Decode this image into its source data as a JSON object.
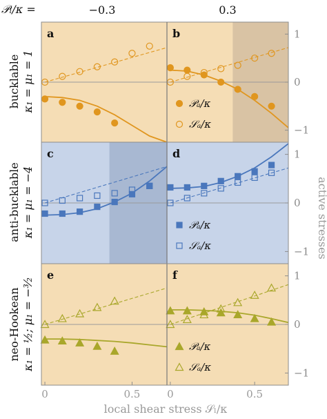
{
  "header": {
    "param_label": "𝒫ₗ/κ =",
    "col_left": "−0.3",
    "col_right": "0.3"
  },
  "rows": [
    {
      "label_top": "bucklable",
      "label_bottom": "κ₁ = μ₁ = 1"
    },
    {
      "label_top": "anti-bucklable",
      "label_bottom": "κ₁ = μ₁ = −4"
    },
    {
      "label_top": "neo-Hookean",
      "label_bottom": "κ₁ = ½; μ₁ = −³⁄₂"
    }
  ],
  "right_axis_label": "active stresses",
  "x_axis_label": "local shear stress 𝒮ₗ/κ",
  "x_ticks": [
    "0",
    "0.5",
    "0",
    "0.5"
  ],
  "y_ticks": [
    "1",
    "0",
    "−1",
    "1",
    "0",
    "−1",
    "1",
    "0",
    "−1"
  ],
  "colors": {
    "orange_bg": "#f5ddb5",
    "orange_shade": "#d9c3a4",
    "orange_mark": "#e0961f",
    "blue_bg": "#c7d4e9",
    "blue_shade": "#a8b8d2",
    "blue_mark": "#4a77bc",
    "olive_bg": "#f5ddb5",
    "olive_mark": "#a9a72b"
  },
  "chart_data": [
    {
      "panel": "a",
      "type": "scatter",
      "xlim": [
        -0.02,
        0.7
      ],
      "ylim": [
        -1.25,
        1.25
      ],
      "series": [
        {
          "marker": "filled-circle",
          "x": [
            0.0,
            0.1,
            0.2,
            0.3,
            0.4
          ],
          "y": [
            -0.35,
            -0.42,
            -0.5,
            -0.62,
            -0.85
          ]
        },
        {
          "marker": "open-circle",
          "x": [
            0.0,
            0.1,
            0.2,
            0.3,
            0.4,
            0.5,
            0.6
          ],
          "y": [
            0.0,
            0.12,
            0.22,
            0.32,
            0.42,
            0.6,
            0.75
          ]
        }
      ],
      "curves": [
        {
          "style": "solid",
          "x": [
            0.0,
            0.1,
            0.2,
            0.3,
            0.4,
            0.5,
            0.6,
            0.7
          ],
          "y": [
            -0.3,
            -0.32,
            -0.38,
            -0.5,
            -0.68,
            -0.9,
            -1.12,
            -1.3
          ]
        },
        {
          "style": "dashed",
          "x": [
            0.0,
            0.7
          ],
          "y": [
            0.0,
            0.72
          ]
        }
      ],
      "shade": null
    },
    {
      "panel": "b",
      "type": "scatter",
      "xlim": [
        -0.02,
        0.7
      ],
      "ylim": [
        -1.25,
        1.25
      ],
      "legend": [
        "𝒫ₐ/κ",
        "𝒮ₐ/κ"
      ],
      "series": [
        {
          "marker": "filled-circle",
          "x": [
            0.0,
            0.1,
            0.2,
            0.3,
            0.4,
            0.5,
            0.6
          ],
          "y": [
            0.3,
            0.25,
            0.15,
            0.0,
            -0.15,
            -0.3,
            -0.5
          ]
        },
        {
          "marker": "open-circle",
          "x": [
            0.0,
            0.1,
            0.2,
            0.3,
            0.4,
            0.5,
            0.6
          ],
          "y": [
            0.0,
            0.12,
            0.2,
            0.28,
            0.35,
            0.5,
            0.6
          ]
        }
      ],
      "curves": [
        {
          "style": "solid",
          "x": [
            0.0,
            0.1,
            0.2,
            0.3,
            0.4,
            0.5,
            0.6,
            0.7
          ],
          "y": [
            0.25,
            0.23,
            0.15,
            0.02,
            -0.15,
            -0.38,
            -0.65,
            -0.95
          ]
        },
        {
          "style": "dashed",
          "x": [
            0.0,
            0.7
          ],
          "y": [
            0.0,
            0.72
          ]
        }
      ],
      "shade": [
        0.37,
        0.7
      ]
    },
    {
      "panel": "c",
      "type": "scatter",
      "xlim": [
        -0.02,
        0.7
      ],
      "ylim": [
        -1.25,
        1.25
      ],
      "series": [
        {
          "marker": "filled-square",
          "x": [
            0.0,
            0.1,
            0.2,
            0.3,
            0.4,
            0.5,
            0.6
          ],
          "y": [
            -0.22,
            -0.22,
            -0.18,
            -0.08,
            0.02,
            0.18,
            0.35
          ]
        },
        {
          "marker": "open-square",
          "x": [
            0.0,
            0.1,
            0.2,
            0.3,
            0.4,
            0.5,
            0.6
          ],
          "y": [
            0.0,
            0.05,
            0.1,
            0.15,
            0.2,
            0.27,
            0.35
          ]
        }
      ],
      "curves": [
        {
          "style": "solid",
          "x": [
            0.0,
            0.1,
            0.2,
            0.3,
            0.4,
            0.5,
            0.6,
            0.7
          ],
          "y": [
            -0.25,
            -0.24,
            -0.2,
            -0.12,
            0.02,
            0.2,
            0.45,
            0.75
          ]
        },
        {
          "style": "dashed",
          "x": [
            0.0,
            0.7
          ],
          "y": [
            0.0,
            0.75
          ]
        }
      ],
      "shade": [
        0.37,
        0.7
      ]
    },
    {
      "panel": "d",
      "type": "scatter",
      "xlim": [
        -0.02,
        0.7
      ],
      "ylim": [
        -1.25,
        1.25
      ],
      "legend": [
        "𝒫ₐ/κ",
        "𝒮ₐ/κ"
      ],
      "series": [
        {
          "marker": "filled-square",
          "x": [
            0.0,
            0.1,
            0.2,
            0.3,
            0.4,
            0.5,
            0.6
          ],
          "y": [
            0.32,
            0.32,
            0.35,
            0.45,
            0.55,
            0.65,
            0.78
          ]
        },
        {
          "marker": "open-square",
          "x": [
            0.0,
            0.1,
            0.2,
            0.3,
            0.4,
            0.5,
            0.6
          ],
          "y": [
            0.0,
            0.1,
            0.2,
            0.3,
            0.42,
            0.52,
            0.62
          ]
        }
      ],
      "curves": [
        {
          "style": "solid",
          "x": [
            0.0,
            0.1,
            0.2,
            0.3,
            0.4,
            0.5,
            0.6,
            0.7
          ],
          "y": [
            0.3,
            0.31,
            0.34,
            0.42,
            0.55,
            0.72,
            0.95,
            1.22
          ]
        },
        {
          "style": "dashed",
          "x": [
            0.0,
            0.7
          ],
          "y": [
            0.0,
            0.72
          ]
        }
      ],
      "shade": null
    },
    {
      "panel": "e",
      "type": "scatter",
      "xlim": [
        -0.02,
        0.7
      ],
      "ylim": [
        -1.25,
        1.25
      ],
      "series": [
        {
          "marker": "filled-triangle",
          "x": [
            0.0,
            0.1,
            0.2,
            0.3,
            0.4
          ],
          "y": [
            -0.32,
            -0.34,
            -0.38,
            -0.45,
            -0.55
          ]
        },
        {
          "marker": "open-triangle",
          "x": [
            0.0,
            0.1,
            0.2,
            0.3,
            0.4
          ],
          "y": [
            0.0,
            0.12,
            0.22,
            0.35,
            0.48
          ]
        }
      ],
      "curves": [
        {
          "style": "solid",
          "x": [
            0.0,
            0.1,
            0.2,
            0.3,
            0.4,
            0.5,
            0.6,
            0.7
          ],
          "y": [
            -0.3,
            -0.3,
            -0.31,
            -0.33,
            -0.35,
            -0.38,
            -0.42,
            -0.46
          ]
        },
        {
          "style": "dashed",
          "x": [
            0.0,
            0.7
          ],
          "y": [
            0.0,
            0.75
          ]
        }
      ],
      "shade": null
    },
    {
      "panel": "f",
      "type": "scatter",
      "xlim": [
        -0.02,
        0.7
      ],
      "ylim": [
        -1.25,
        1.25
      ],
      "legend": [
        "𝒫ₐ/κ",
        "𝒮ₐ/κ"
      ],
      "series": [
        {
          "marker": "filled-triangle",
          "x": [
            0.0,
            0.1,
            0.2,
            0.3,
            0.4,
            0.5,
            0.6
          ],
          "y": [
            0.28,
            0.28,
            0.26,
            0.24,
            0.2,
            0.12,
            0.05
          ]
        },
        {
          "marker": "open-triangle",
          "x": [
            0.0,
            0.1,
            0.2,
            0.3,
            0.4,
            0.5,
            0.6
          ],
          "y": [
            0.0,
            0.1,
            0.2,
            0.32,
            0.45,
            0.6,
            0.75
          ]
        }
      ],
      "curves": [
        {
          "style": "solid",
          "x": [
            0.0,
            0.1,
            0.2,
            0.3,
            0.4,
            0.5,
            0.6,
            0.7
          ],
          "y": [
            0.3,
            0.3,
            0.29,
            0.27,
            0.24,
            0.19,
            0.12,
            0.04
          ]
        },
        {
          "style": "dashed",
          "x": [
            0.0,
            0.7
          ],
          "y": [
            0.0,
            0.82
          ]
        }
      ],
      "shade": null
    }
  ]
}
